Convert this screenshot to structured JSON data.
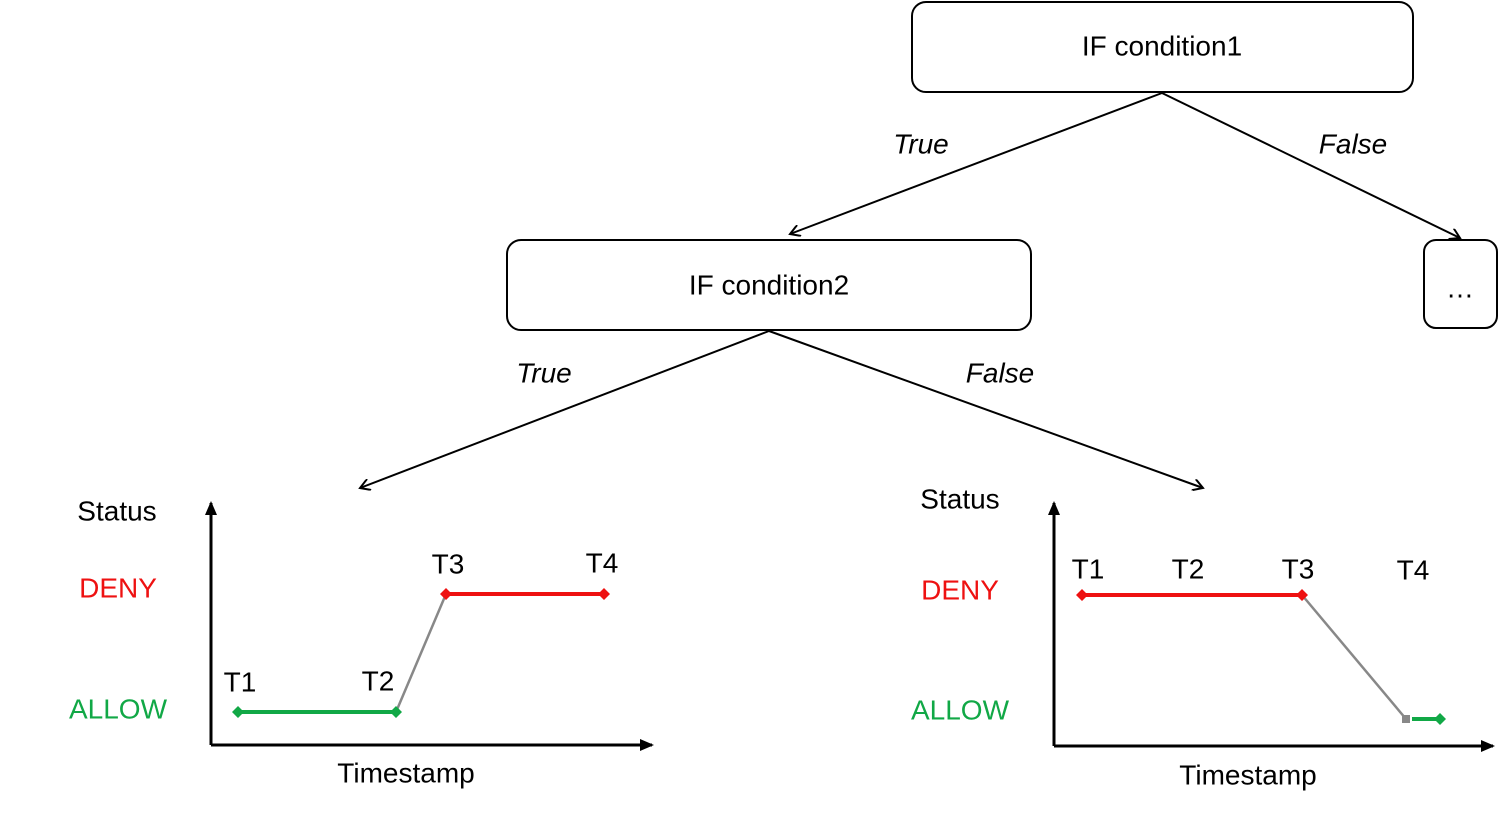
{
  "nodes": [
    {
      "label": "IF condition1"
    },
    {
      "label": "IF condition2"
    },
    {
      "label": "…"
    }
  ],
  "edges": [
    {
      "label": "True"
    },
    {
      "label": "False"
    },
    {
      "label": "True"
    },
    {
      "label": "False"
    }
  ],
  "plots": [
    {
      "y_label": "Status",
      "x_label": "Timestamp",
      "states": [
        "DENY",
        "ALLOW"
      ],
      "times": [
        "T1",
        "T2",
        "T3",
        "T4"
      ]
    },
    {
      "y_label": "Status",
      "x_label": "Timestamp",
      "states": [
        "DENY",
        "ALLOW"
      ],
      "times": [
        "T1",
        "T2",
        "T3",
        "T4"
      ]
    }
  ]
}
